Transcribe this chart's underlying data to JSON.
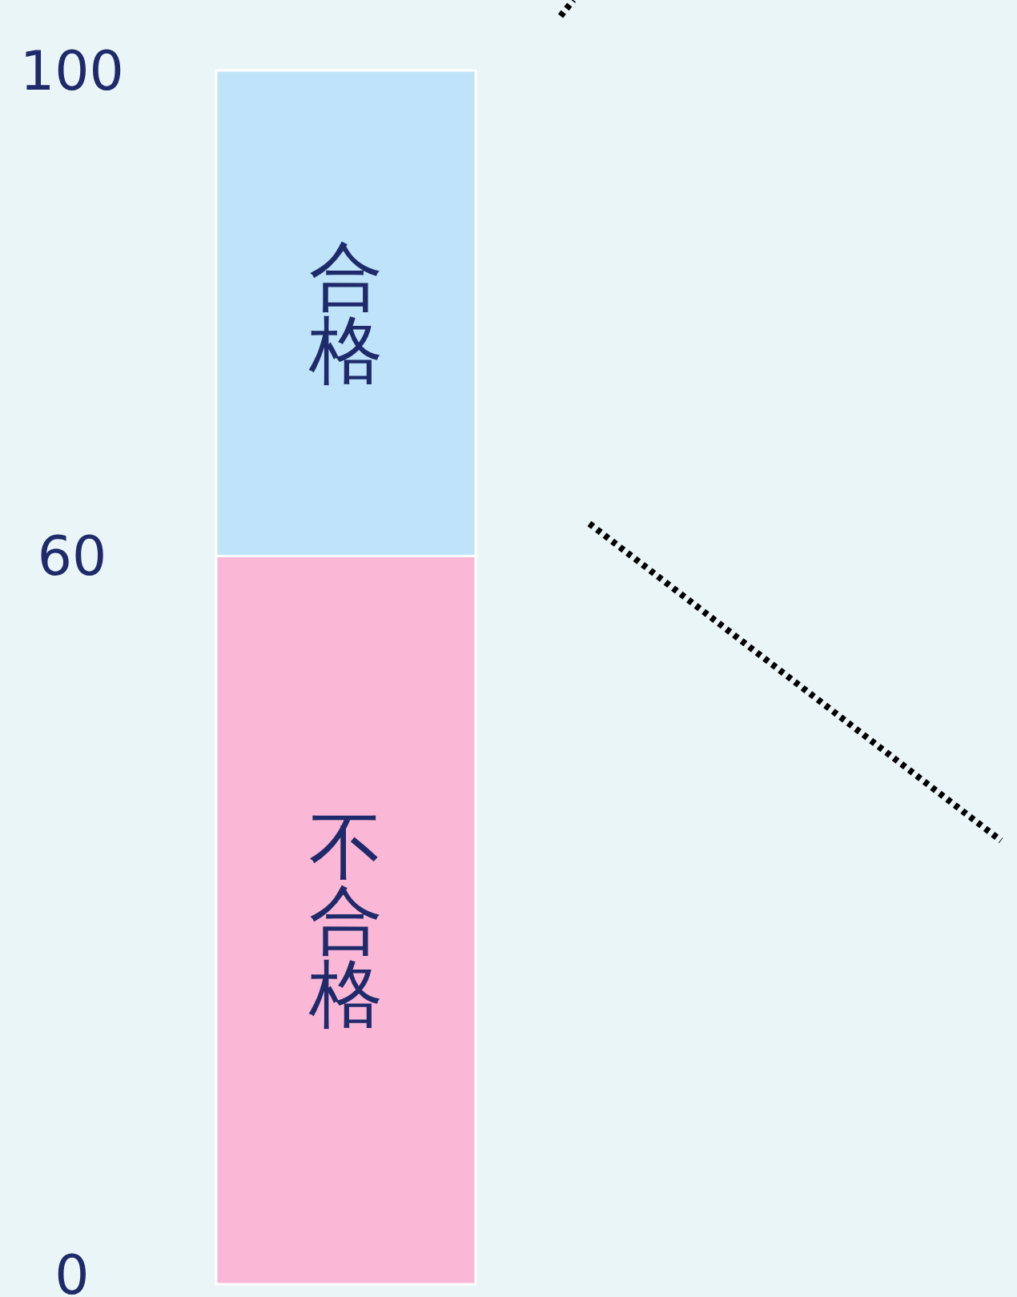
{
  "chart_data": {
    "type": "bar",
    "stacked": true,
    "categories": [
      null
    ],
    "series": [
      {
        "name": "不合格",
        "color": "#fbb8d6",
        "values": [
          60
        ]
      },
      {
        "name": "合格",
        "color": "#bfe3f8",
        "values": [
          40
        ]
      }
    ],
    "ylim": [
      0,
      100
    ],
    "yticks": [
      0,
      60,
      100
    ],
    "tick_labels": "y",
    "grid": false,
    "legend": false
  }
}
